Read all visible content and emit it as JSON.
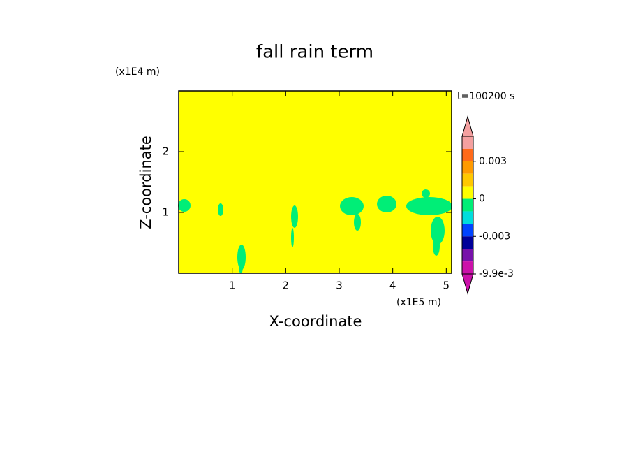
{
  "chart_data": {
    "type": "contour",
    "title": "fall rain term",
    "x_label": "X-coordinate",
    "y_label": "Z-coordinate",
    "x_unit": "(x1E5 m)",
    "y_unit": "(x1E4 m)",
    "annotation": "t=100200 s",
    "xlim": [
      0,
      5.1
    ],
    "ylim": [
      0,
      3
    ],
    "xticks": [
      1,
      2,
      3,
      4,
      5
    ],
    "yticks": [
      1,
      2
    ],
    "background_color": "#ffff00",
    "feature_color": "#00ee77",
    "colorbar": {
      "bounds": [
        0.005,
        0.004,
        0.003,
        0.002,
        0.001,
        0,
        -0.001,
        -0.002,
        -0.003,
        -0.004,
        -0.0065,
        -0.0099
      ],
      "colors": [
        "#f4a0a0",
        "#f4a0a0",
        "#ff6a1a",
        "#ff9a00",
        "#ffc800",
        "#ffff00",
        "#00ee77",
        "#00dddd",
        "#0044ff",
        "#000099",
        "#7711aa",
        "#cc11aa",
        "#cc11aa"
      ],
      "ticks": [
        0.003,
        0,
        -0.003,
        {
          "value": -0.0099,
          "label": "-9.9e-3"
        }
      ]
    }
  }
}
